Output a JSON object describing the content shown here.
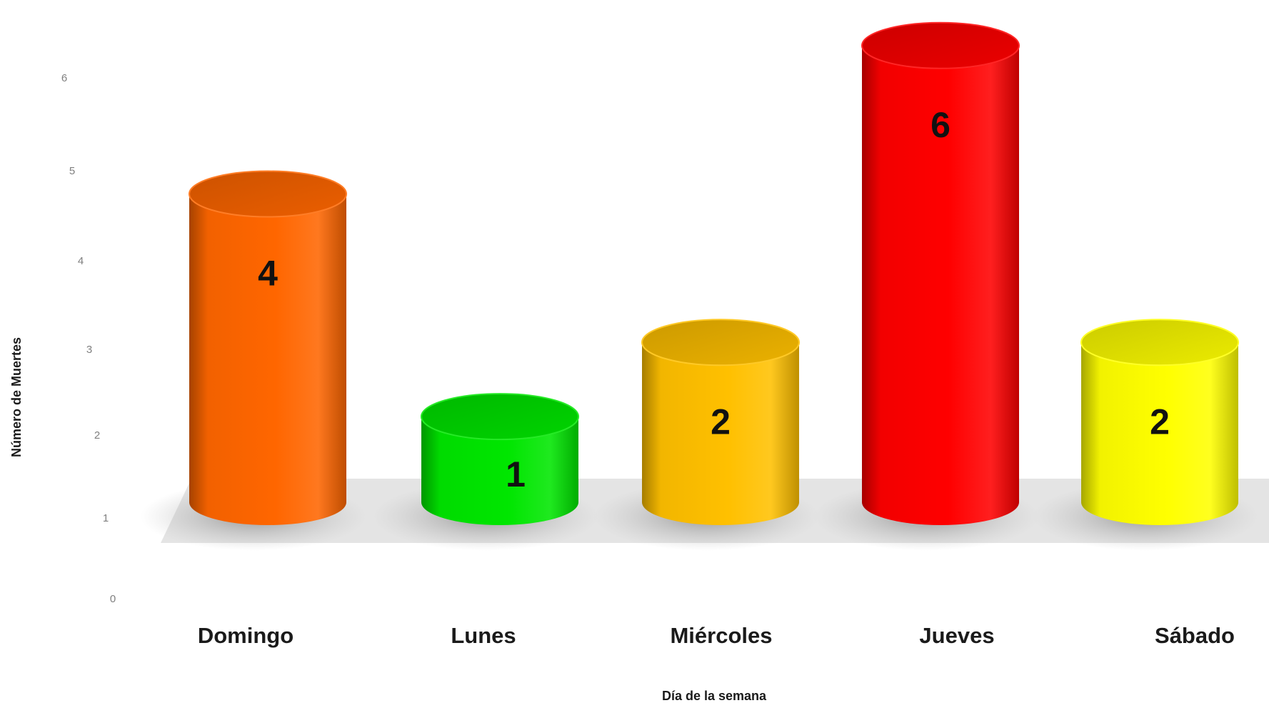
{
  "chart_data": {
    "type": "bar",
    "style": "3d-cylinder",
    "title": "",
    "xlabel": "Día de la semana",
    "ylabel": "Número de Muertes",
    "categories": [
      "Domingo",
      "Lunes",
      "Miércoles",
      "Jueves",
      "Sábado"
    ],
    "values": [
      4,
      1,
      2,
      6,
      2
    ],
    "data_labels": [
      "4",
      "1",
      "2",
      "6",
      "2"
    ],
    "yticks": [
      "0",
      "1",
      "2",
      "3",
      "4",
      "5",
      "6"
    ],
    "ylim": [
      0,
      6
    ],
    "grid": false,
    "legend": "none",
    "colors": [
      "#ff6600",
      "#00e600",
      "#ffc000",
      "#ff0000",
      "#ffff00"
    ]
  }
}
